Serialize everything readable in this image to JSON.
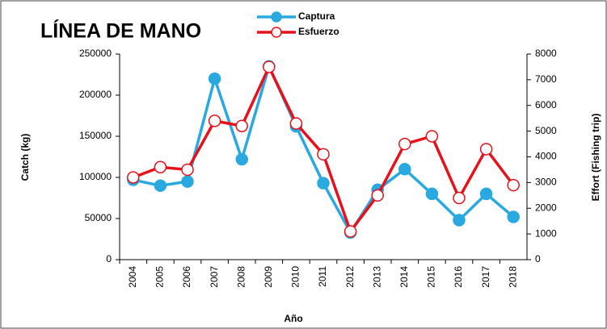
{
  "chart_data": {
    "type": "line",
    "title": "LÍNEA DE MANO",
    "xlabel": "Año",
    "ylabel": "Catch (kg)",
    "y2label": "Effort (Fishing trip)",
    "categories": [
      "2004",
      "2005",
      "2006",
      "2007",
      "2008",
      "2009",
      "2010",
      "2011",
      "2012",
      "2013",
      "2014",
      "2015",
      "2016",
      "2017",
      "2018"
    ],
    "series": [
      {
        "name": "Captura",
        "color": "#29a9e0",
        "marker_fill": "#29a9e0",
        "values": [
          97000,
          90000,
          95000,
          220000,
          122000,
          235000,
          162000,
          93000,
          33000,
          85000,
          110000,
          80000,
          48000,
          80000,
          52000
        ]
      },
      {
        "name": "Esfuerzo",
        "color": "#e8101a",
        "marker_fill": "#ffffff",
        "axis": "y2",
        "values": [
          3200,
          3600,
          3500,
          5400,
          5200,
          7500,
          5300,
          4100,
          1100,
          2500,
          4500,
          4800,
          2400,
          4300,
          2900
        ]
      }
    ],
    "ylim": [
      0,
      250000
    ],
    "yticks": [
      0,
      50000,
      100000,
      150000,
      200000,
      250000
    ],
    "y2lim": [
      0,
      8000
    ],
    "y2ticks": [
      0,
      1000,
      2000,
      3000,
      4000,
      5000,
      6000,
      7000,
      8000
    ],
    "grid": false
  }
}
